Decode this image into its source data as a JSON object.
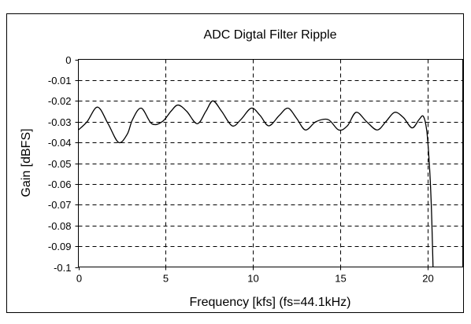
{
  "chart_data": {
    "type": "line",
    "title": "ADC Digtal Filter Ripple",
    "xlabel": "Frequency [kfs] (fs=44.1kHz)",
    "ylabel": "Gain [dBFS]",
    "xlim": [
      0,
      22
    ],
    "ylim": [
      -0.1,
      0
    ],
    "x_ticks": [
      0,
      5,
      10,
      15,
      20
    ],
    "x_tick_labels": [
      "0",
      "5",
      "10",
      "15",
      "20"
    ],
    "y_ticks": [
      0,
      -0.01,
      -0.02,
      -0.03,
      -0.04,
      -0.05,
      -0.06,
      -0.07,
      -0.08,
      -0.09,
      -0.1
    ],
    "y_tick_labels": [
      "0",
      "-0.01",
      "-0.02",
      "-0.03",
      "-0.04",
      "-0.05",
      "-0.06",
      "-0.07",
      "-0.08",
      "-0.09",
      "-0.1"
    ],
    "grid": true,
    "grid_style": "dashed",
    "series": [
      {
        "color": "#000000",
        "x": [
          0,
          0.5,
          1.1,
          1.7,
          2.3,
          2.8,
          3.1,
          3.6,
          4.2,
          4.8,
          5.3,
          5.7,
          6.2,
          6.8,
          7.3,
          7.7,
          8.2,
          8.8,
          9.3,
          9.9,
          10.4,
          10.9,
          11.5,
          12.0,
          12.5,
          13.0,
          13.6,
          14.3,
          14.9,
          15.4,
          15.9,
          16.5,
          17.1,
          17.6,
          18.1,
          18.6,
          19.1,
          19.5,
          19.75,
          19.95,
          20.1,
          20.2,
          20.27,
          20.3
        ],
        "y": [
          -0.034,
          -0.03,
          -0.023,
          -0.031,
          -0.04,
          -0.036,
          -0.029,
          -0.0235,
          -0.031,
          -0.03,
          -0.025,
          -0.022,
          -0.025,
          -0.031,
          -0.025,
          -0.02,
          -0.025,
          -0.032,
          -0.029,
          -0.0235,
          -0.027,
          -0.032,
          -0.027,
          -0.0235,
          -0.0285,
          -0.034,
          -0.03,
          -0.029,
          -0.034,
          -0.032,
          -0.0255,
          -0.03,
          -0.034,
          -0.03,
          -0.0255,
          -0.028,
          -0.033,
          -0.029,
          -0.0275,
          -0.035,
          -0.052,
          -0.07,
          -0.09,
          -0.1
        ]
      }
    ]
  }
}
